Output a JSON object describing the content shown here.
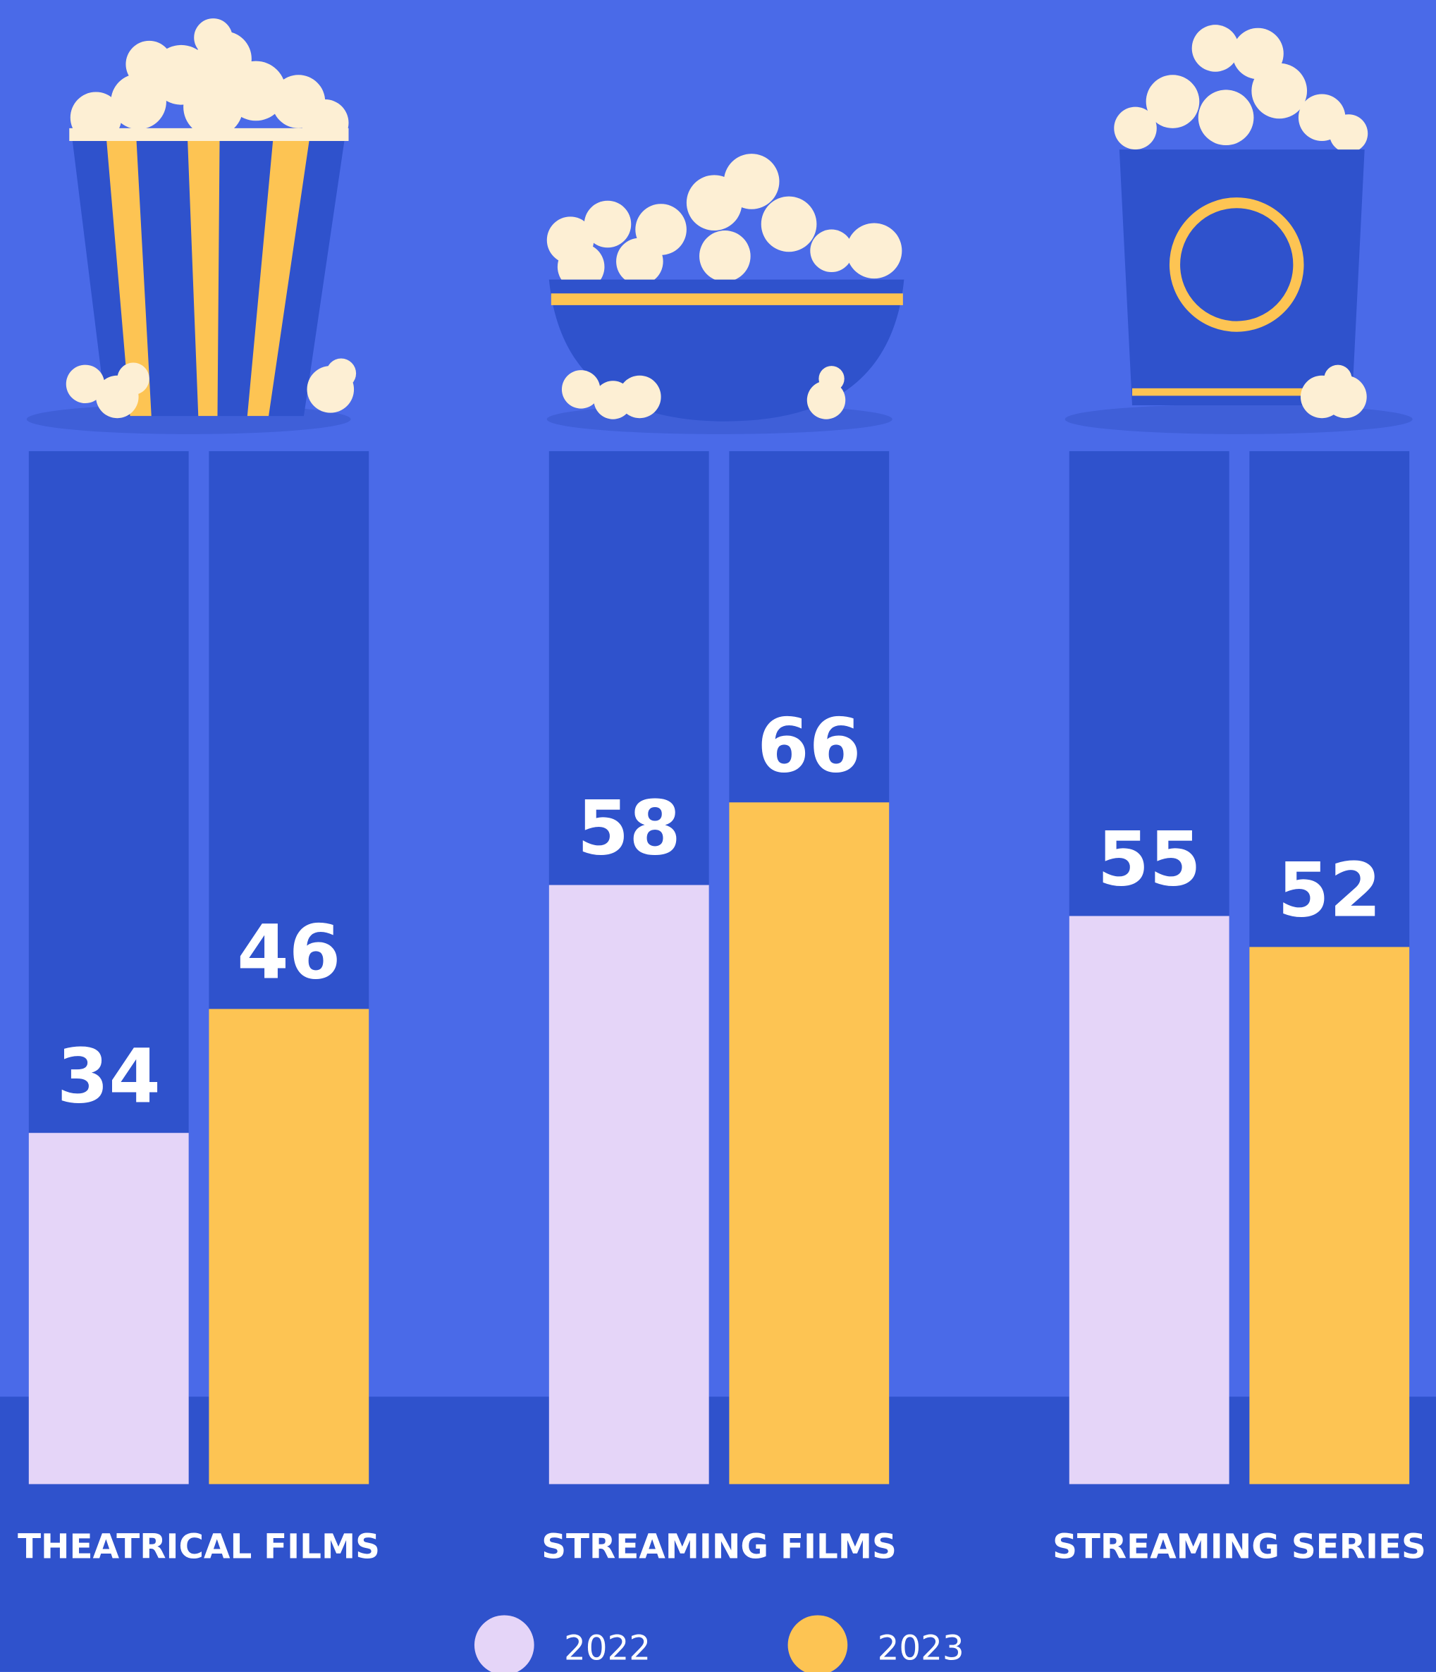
{
  "chart_data": {
    "type": "bar",
    "categories": [
      "THEATRICAL FILMS",
      "STREAMING FILMS",
      "STREAMING SERIES"
    ],
    "series": [
      {
        "name": "2022",
        "color": "#e5d5f8",
        "values": [
          34,
          58,
          55
        ]
      },
      {
        "name": "2023",
        "color": "#fdc453",
        "values": [
          46,
          66,
          52
        ]
      }
    ],
    "ylim": [
      0,
      100
    ]
  }
}
